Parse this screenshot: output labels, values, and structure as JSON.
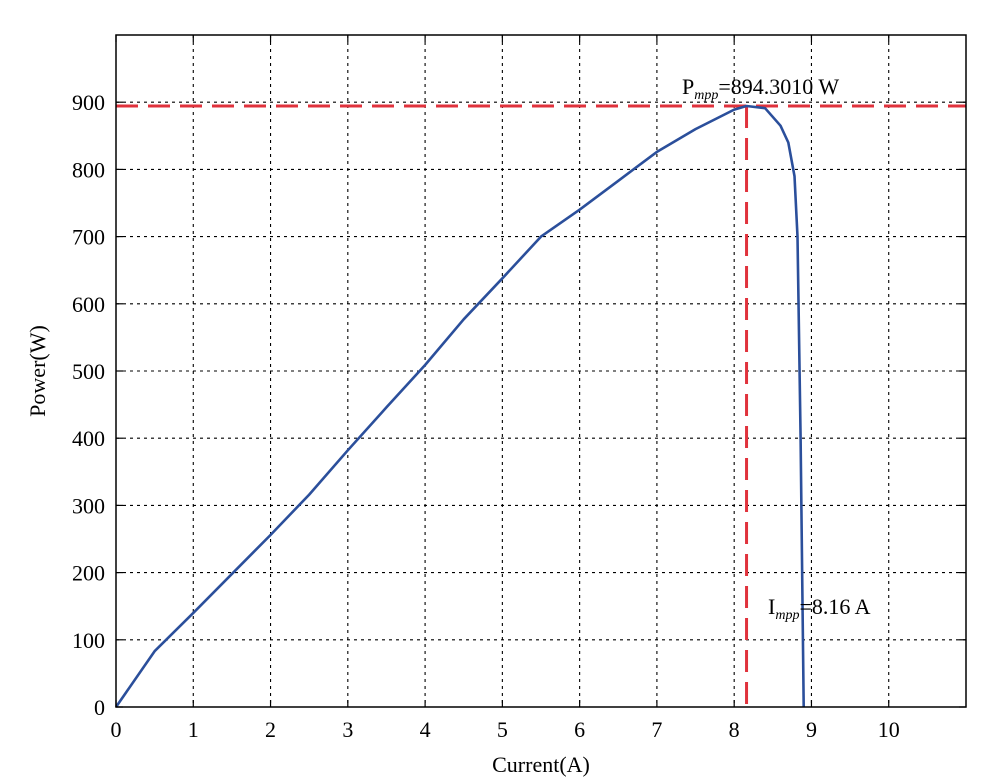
{
  "chart_data": {
    "type": "line",
    "xlabel": "Current(A)",
    "ylabel": "Power(W)",
    "xlim": [
      0,
      11
    ],
    "ylim": [
      0,
      1000
    ],
    "xticks": [
      "0",
      "1",
      "2",
      "3",
      "4",
      "5",
      "6",
      "7",
      "8",
      "9",
      "10"
    ],
    "yticks": [
      "0",
      "100",
      "200",
      "300",
      "400",
      "500",
      "600",
      "700",
      "800",
      "900"
    ],
    "grid": true,
    "series": [
      {
        "color": "#2b4f9b",
        "points": [
          [
            0,
            0
          ],
          [
            0.5,
            83
          ],
          [
            1,
            140
          ],
          [
            1.5,
            198
          ],
          [
            2,
            256
          ],
          [
            2.5,
            316
          ],
          [
            3,
            382
          ],
          [
            3.5,
            446
          ],
          [
            4,
            509
          ],
          [
            4.5,
            577
          ],
          [
            5,
            638
          ],
          [
            5.5,
            700
          ],
          [
            6,
            740
          ],
          [
            6.5,
            783
          ],
          [
            7,
            826
          ],
          [
            7.5,
            860
          ],
          [
            8,
            889
          ],
          [
            8.16,
            894.3
          ],
          [
            8.4,
            891
          ],
          [
            8.6,
            865
          ],
          [
            8.7,
            840
          ],
          [
            8.78,
            790
          ],
          [
            8.82,
            700
          ],
          [
            8.86,
            400
          ],
          [
            8.9,
            0
          ]
        ]
      }
    ],
    "reference_lines": {
      "color": "#e0323c",
      "horizontal_y": 894.301,
      "vertical_x": 8.16
    },
    "annotations": {
      "pmpp": {
        "main": "P",
        "sub": "mpp",
        "value": "=894.3010 W"
      },
      "impp": {
        "main": "I",
        "sub": "mpp",
        "value": "=8.16 A"
      }
    }
  }
}
